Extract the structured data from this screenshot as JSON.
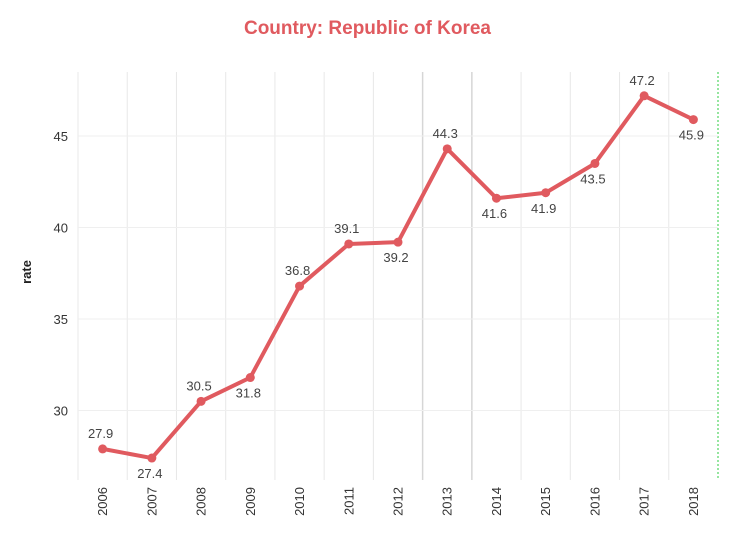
{
  "chart_data": {
    "type": "line",
    "title": "Country:  Republic of Korea",
    "xlabel": "",
    "ylabel": "rate",
    "categories": [
      "2006",
      "2007",
      "2008",
      "2009",
      "2010",
      "2011",
      "2012",
      "2013",
      "2014",
      "2015",
      "2016",
      "2017",
      "2018"
    ],
    "values": [
      27.9,
      27.4,
      30.5,
      31.8,
      36.8,
      39.1,
      39.2,
      44.3,
      41.6,
      41.9,
      43.5,
      47.2,
      45.9
    ],
    "value_labels": [
      "27.9",
      "27.4",
      "30.5",
      "31.8",
      "36.8",
      "39.1",
      "39.2",
      "44.3",
      "41.6",
      "41.9",
      "43.5",
      "47.2",
      "45.9"
    ],
    "yticks": [
      30,
      35,
      40,
      45
    ],
    "ylim": [
      26.2,
      48.5
    ],
    "grid": true,
    "colors": {
      "line": "#e05a5f",
      "title": "#e05a5f",
      "grid": "#e8e8e8"
    }
  }
}
